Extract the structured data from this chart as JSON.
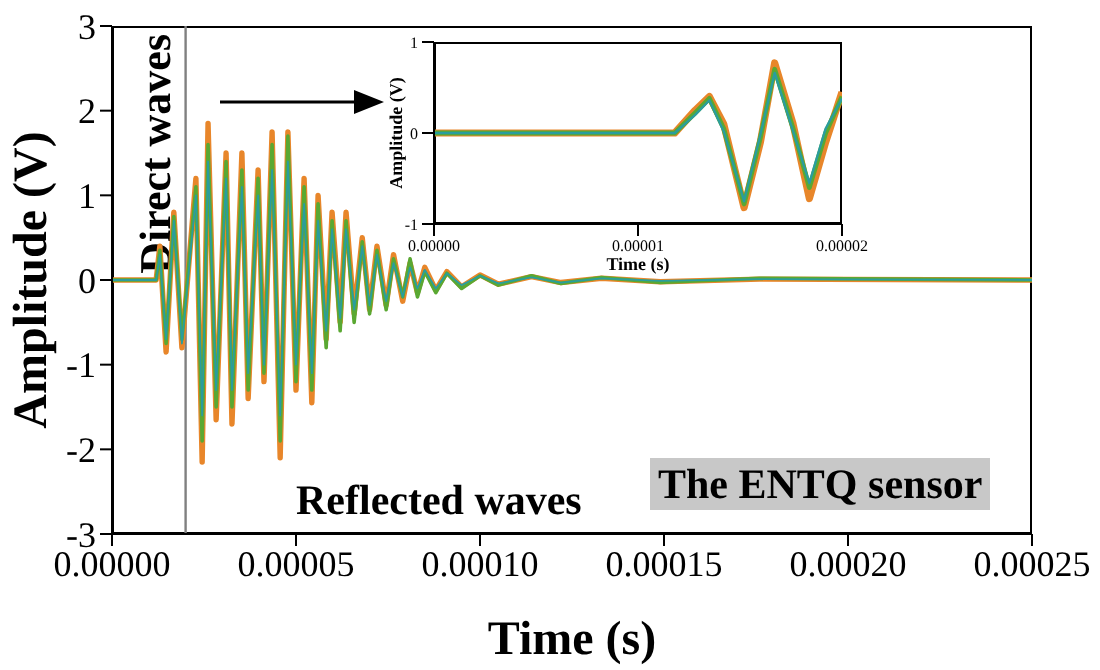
{
  "chart_data": [
    {
      "type": "line",
      "xlabel": "Time (s)",
      "ylabel": "Amplitude (V)",
      "xlim": [
        0,
        0.00025
      ],
      "xticks": [
        {
          "value": 0,
          "label": "0.00000"
        },
        {
          "value": 5e-05,
          "label": "0.00005"
        },
        {
          "value": 0.0001,
          "label": "0.00010"
        },
        {
          "value": 0.00015,
          "label": "0.00015"
        },
        {
          "value": 0.0002,
          "label": "0.00020"
        },
        {
          "value": 0.00025,
          "label": "0.00025"
        }
      ],
      "ylim": [
        -3,
        3
      ],
      "yticks": [
        -3,
        -2,
        -1,
        0,
        1,
        2,
        3
      ],
      "grid": false,
      "legend": false,
      "ref_lines": [
        {
          "axis": "x",
          "value": 2e-05,
          "label": "Direct waves",
          "color": "#808080"
        }
      ],
      "annotations": [
        "Reflected waves",
        "The ENTQ sensor"
      ],
      "x": [
        0,
        1.2e-05,
        1.3e-05,
        1.47e-05,
        1.68e-05,
        1.9e-05,
        2.28e-05,
        2.45e-05,
        2.61e-05,
        2.83e-05,
        3.1e-05,
        3.26e-05,
        3.53e-05,
        3.7e-05,
        3.97e-05,
        4.13e-05,
        4.35e-05,
        4.57e-05,
        4.78e-05,
        5e-05,
        5.22e-05,
        5.43e-05,
        5.6e-05,
        5.82e-05,
        5.98e-05,
        6.2e-05,
        6.36e-05,
        6.58e-05,
        6.8e-05,
        7e-05,
        7.2e-05,
        7.45e-05,
        7.65e-05,
        7.9e-05,
        8.1e-05,
        8.3e-05,
        8.5e-05,
        8.8e-05,
        9.1e-05,
        9.5e-05,
        0.0001,
        0.000105,
        0.000114,
        0.000122,
        0.000133,
        0.000149,
        0.000176,
        0.00025
      ],
      "series": [
        {
          "color": "#e8862a",
          "values": [
            0,
            0,
            0.4,
            -0.85,
            0.8,
            -0.8,
            1.2,
            -2.15,
            1.85,
            -1.65,
            1.5,
            -1.7,
            1.5,
            -1.4,
            1.3,
            -1.2,
            1.75,
            -2.1,
            1.75,
            -1.3,
            1.2,
            -1.45,
            1,
            -0.7,
            0.8,
            -0.5,
            0.8,
            -0.4,
            0.5,
            -0.35,
            0.4,
            -0.3,
            0.3,
            -0.25,
            0.2,
            -0.15,
            0.15,
            -0.12,
            0.1,
            -0.08,
            0.06,
            -0.05,
            0.04,
            -0.03,
            0.02,
            -0.02,
            0.01,
            0
          ]
        },
        {
          "color": "#5aa832",
          "values": [
            0,
            0,
            0.35,
            -0.75,
            0.75,
            -0.7,
            1.1,
            -1.9,
            1.6,
            -1.5,
            1.4,
            -1.5,
            1.3,
            -1.3,
            1.2,
            -1.1,
            1.6,
            -1.9,
            1.7,
            -1.2,
            1.1,
            -1.3,
            0.9,
            -0.8,
            0.7,
            -0.6,
            0.7,
            -0.5,
            0.45,
            -0.4,
            0.35,
            -0.35,
            0.25,
            -0.2,
            0.25,
            -0.2,
            0.1,
            -0.15,
            0.08,
            -0.1,
            0.05,
            -0.06,
            0.05,
            -0.04,
            0.03,
            -0.03,
            0.02,
            0
          ]
        },
        {
          "color": "#2a9d9d",
          "values": [
            0,
            0,
            0.3,
            -0.7,
            0.7,
            -0.75,
            1,
            -1.6,
            1.4,
            -1.3,
            1.2,
            -1.3,
            1.1,
            -1.1,
            1.0,
            -1.0,
            1.3,
            -1.6,
            1.4,
            -1.0,
            0.9,
            -1.1,
            0.7,
            -0.6,
            0.6,
            -0.45,
            0.6,
            -0.35,
            0.4,
            -0.3,
            0.3,
            -0.25,
            0.2,
            -0.2,
            0.15,
            -0.1,
            0.12,
            -0.1,
            0.08,
            -0.06,
            0.05,
            -0.04,
            0.03,
            -0.03,
            0.02,
            -0.01,
            0.01,
            0
          ]
        }
      ]
    },
    {
      "type": "line",
      "xlabel": "Time (s)",
      "ylabel": "Amplitude (V)",
      "xlim": [
        0,
        2e-05
      ],
      "xticks": [
        {
          "value": 0,
          "label": "0.00000"
        },
        {
          "value": 1e-05,
          "label": "0.00001"
        },
        {
          "value": 2e-05,
          "label": "0.00002"
        }
      ],
      "ylim": [
        -1,
        1
      ],
      "yticks": [
        -1,
        0,
        1
      ],
      "grid": false,
      "legend": false,
      "x": [
        0,
        1.18e-05,
        1.28e-05,
        1.35e-05,
        1.42e-05,
        1.52e-05,
        1.6e-05,
        1.67e-05,
        1.76e-05,
        1.84e-05,
        1.92e-05,
        2e-05
      ],
      "series": [
        {
          "color": "#e8862a",
          "values": [
            0,
            0,
            0.25,
            0.4,
            0.1,
            -0.82,
            -0.1,
            0.77,
            0.1,
            -0.72,
            -0.1,
            0.45
          ]
        },
        {
          "color": "#5aa832",
          "values": [
            0,
            0,
            0.22,
            0.38,
            0.05,
            -0.78,
            -0.05,
            0.7,
            0.05,
            -0.6,
            0,
            0.4
          ]
        },
        {
          "color": "#2a9d9d",
          "values": [
            0,
            0,
            0.2,
            0.36,
            0.02,
            -0.75,
            -0.02,
            0.66,
            0.02,
            -0.55,
            0.05,
            0.38
          ]
        }
      ]
    }
  ]
}
